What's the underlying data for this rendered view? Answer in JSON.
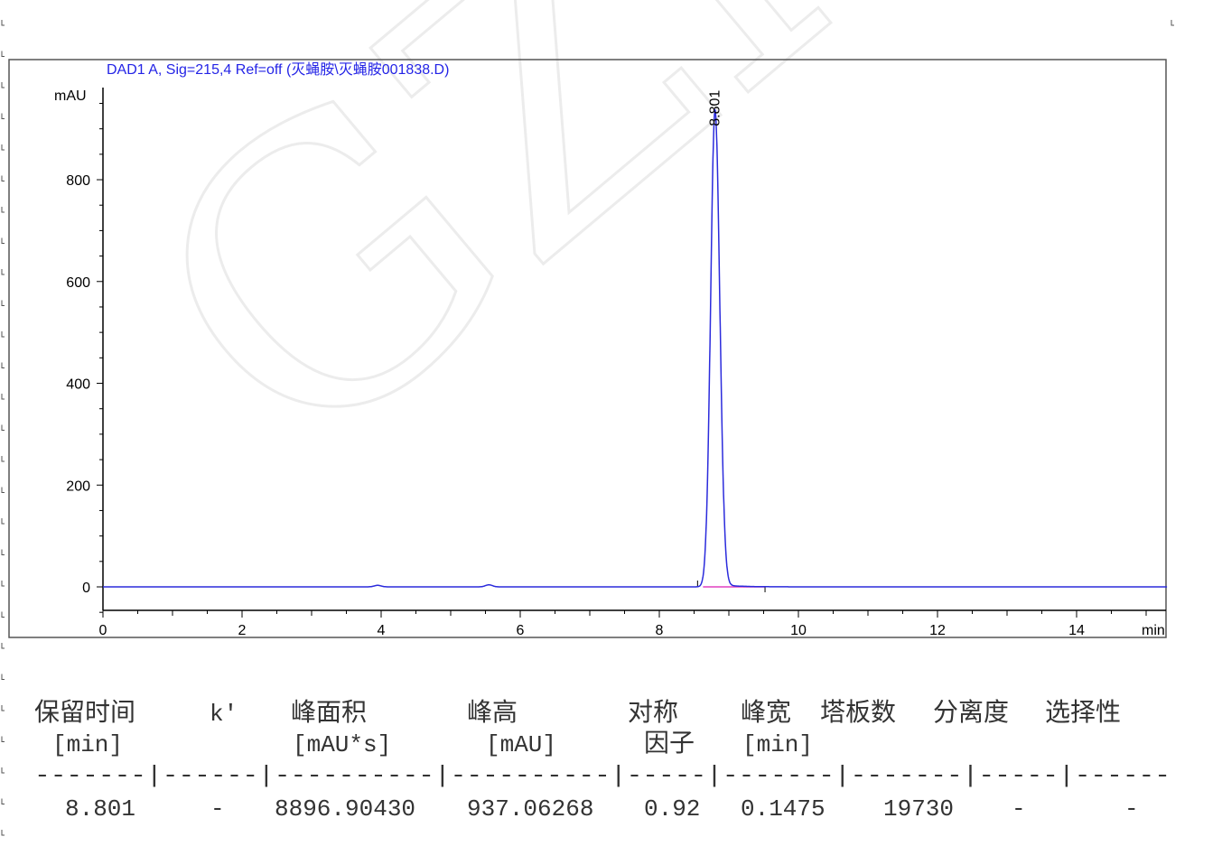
{
  "chart_data": {
    "type": "line",
    "title": "DAD1 A, Sig=215,4 Ref=off (灭蝇胺\\灭蝇胺001838.D)",
    "ylabel": "mAU",
    "xlabel": "min",
    "xlim": [
      0,
      15.3
    ],
    "ylim": [
      -100,
      981
    ],
    "xticks": [
      0,
      2,
      4,
      6,
      8,
      10,
      12,
      14
    ],
    "yticks": [
      0,
      200,
      400,
      600,
      800
    ],
    "grid": false,
    "line_color": "#2b2bdc",
    "baseline_color": "#e040c0",
    "peaks": [
      {
        "retention_time": 8.801,
        "height": 937.06268,
        "width": 0.1475,
        "label": "8.801"
      },
      {
        "retention_time": 3.95,
        "height": 3
      },
      {
        "retention_time": 5.55,
        "height": 4
      }
    ],
    "integration_range": [
      8.55,
      9.52
    ]
  },
  "watermark": "GZHE",
  "table": {
    "headers": [
      "保留时间",
      "k'",
      "峰面积",
      "峰高",
      "对称",
      "峰宽",
      "塔板数",
      "分离度",
      "选择性"
    ],
    "header_line2": [
      "因子"
    ],
    "units": [
      "[min]",
      "[mAU*s]",
      "[mAU]",
      "[min]"
    ],
    "separator": "-------|------|----------|----------|-----|-------|-------|-----|------",
    "row": [
      "8.801",
      "-",
      "8896.90430",
      "937.06268",
      "0.92",
      "0.1475",
      "19730",
      "-",
      "-"
    ]
  }
}
